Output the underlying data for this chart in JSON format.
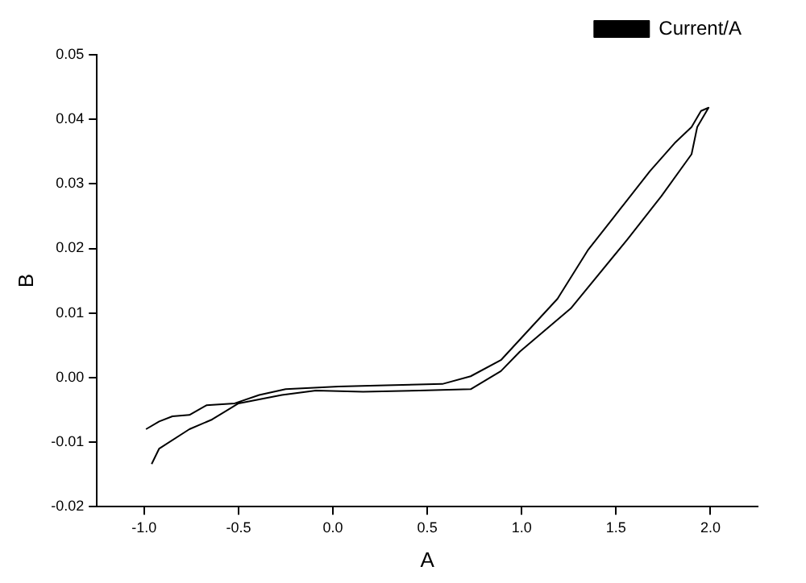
{
  "chart_data": {
    "type": "line",
    "xlabel": "A",
    "ylabel": "B",
    "legend": "top right",
    "grid": false,
    "marker": "none",
    "line_style": "solid",
    "xlim": [
      -1.25,
      2.25
    ],
    "ylim": [
      -0.02,
      0.05
    ],
    "xticks": [
      {
        "value": -1,
        "label": "-1.0"
      },
      -0.5,
      {
        "value": 0,
        "label": "0.0"
      },
      0.5,
      {
        "value": 1,
        "label": "1.0"
      },
      1.5,
      {
        "value": 2,
        "label": "2.0"
      }
    ],
    "yticks": [
      -0.02,
      -0.01,
      {
        "value": 0,
        "label": "0.00"
      },
      0.01,
      0.02,
      0.03,
      0.04,
      0.05
    ],
    "series": [
      {
        "name": "Current/A",
        "color": "#000000",
        "x": [
          -0.96,
          -0.92,
          -0.76,
          -0.64,
          -0.5,
          -0.27,
          -0.09,
          0.16,
          0.46,
          0.73,
          0.89,
          0.99,
          1.26,
          1.56,
          1.74,
          1.9,
          1.93,
          1.99,
          1.95,
          1.9,
          1.81,
          1.68,
          1.53,
          1.35,
          1.19,
          1.01,
          0.89,
          0.73,
          0.58,
          0.28,
          0.03,
          -0.25,
          -0.39,
          -0.52,
          -0.67,
          -0.76,
          -0.85,
          -0.92,
          -0.99
        ],
        "values": [
          -0.0134,
          -0.011,
          -0.008,
          -0.0065,
          -0.004,
          -0.0027,
          -0.002,
          -0.0022,
          -0.002,
          -0.0018,
          0.001,
          0.004,
          0.0107,
          0.0214,
          0.0281,
          0.0346,
          0.0388,
          0.0418,
          0.0413,
          0.0388,
          0.0363,
          0.032,
          0.0264,
          0.0197,
          0.0122,
          0.0065,
          0.0027,
          0.0002,
          -0.001,
          -0.0012,
          -0.0014,
          -0.0018,
          -0.0027,
          -0.004,
          -0.0043,
          -0.0058,
          -0.006,
          -0.0068,
          -0.008
        ]
      }
    ]
  }
}
